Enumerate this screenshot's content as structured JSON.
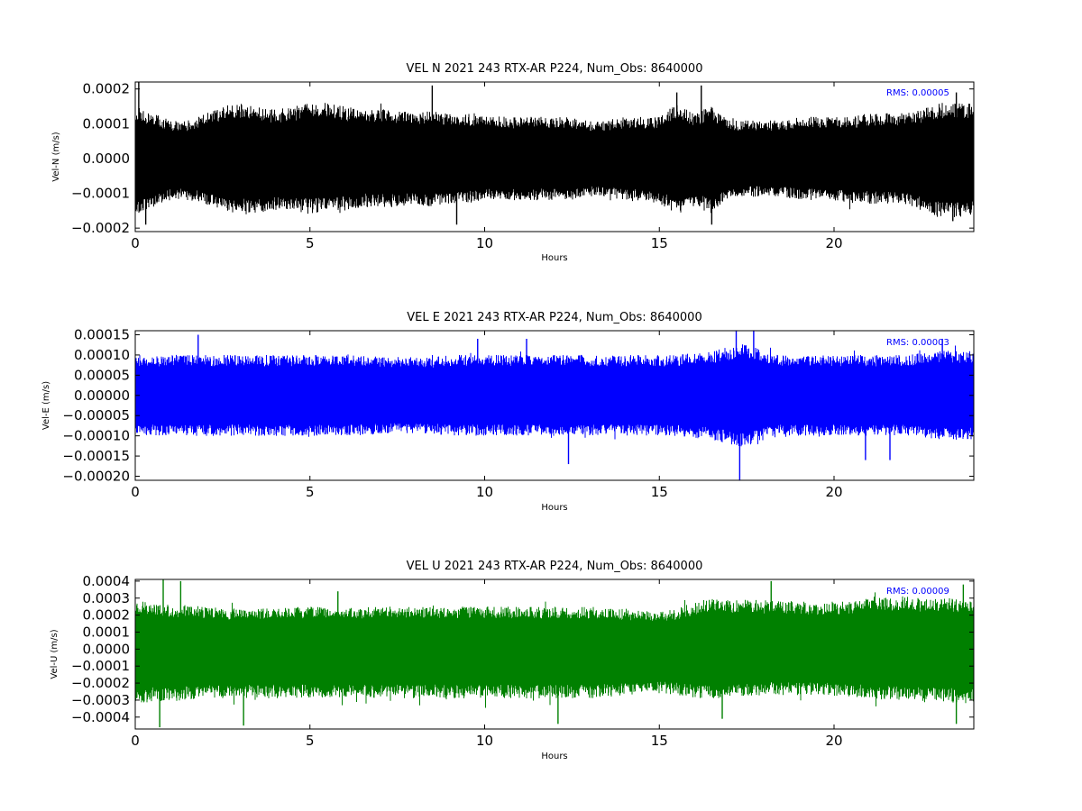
{
  "chart_data": [
    {
      "type": "line",
      "title": "VEL N 2021 243 RTX-AR  P224, Num_Obs: 8640000",
      "xlabel": "Hours",
      "ylabel": "Vel-N (m/s)",
      "xlim": [
        0,
        24
      ],
      "ylim": [
        -0.00021,
        0.00022
      ],
      "x_ticks": [
        0,
        5,
        10,
        15,
        20
      ],
      "x_tick_labels": [
        "0",
        "5",
        "10",
        "15",
        "20"
      ],
      "y_ticks": [
        -0.0002,
        -0.0001,
        0.0,
        0.0001,
        0.0002
      ],
      "y_tick_labels": [
        "−0.0002",
        "−0.0001",
        "0.0000",
        "0.0001",
        "0.0002"
      ],
      "color": "#000000",
      "annotation": {
        "text": "RMS:  0.00005",
        "color": "#0000ff",
        "position": "top-right"
      },
      "series": [
        {
          "x": [
            0,
            0.5,
            1,
            1.5,
            2,
            2.5,
            3,
            3.5,
            4,
            4.5,
            5,
            5.5,
            6,
            6.5,
            7,
            7.5,
            8,
            8.5,
            9,
            9.5,
            10,
            10.5,
            11,
            11.5,
            12,
            12.5,
            13,
            13.5,
            14,
            14.5,
            15,
            15.5,
            16,
            16.5,
            17,
            17.5,
            18,
            18.5,
            19,
            19.5,
            20,
            20.5,
            21,
            21.5,
            22,
            22.5,
            23,
            23.5,
            24
          ],
          "upper": [
            0.00015,
            0.00013,
            0.00011,
            0.00011,
            0.00013,
            0.00015,
            0.00016,
            0.00015,
            0.00014,
            0.00015,
            0.00016,
            0.00016,
            0.00015,
            0.00014,
            0.00014,
            0.00014,
            0.00013,
            0.00014,
            0.00013,
            0.00013,
            0.00013,
            0.00012,
            0.00012,
            0.00012,
            0.00012,
            0.00012,
            0.00011,
            0.00011,
            0.00012,
            0.00012,
            0.00012,
            0.00016,
            0.00013,
            0.00015,
            0.00011,
            0.00011,
            0.00011,
            0.00011,
            0.00012,
            0.00012,
            0.00012,
            0.00012,
            0.00013,
            0.00013,
            0.00013,
            0.00014,
            0.00016,
            0.00016,
            0.00016
          ],
          "lower": [
            -0.00016,
            -0.00014,
            -0.00012,
            -0.00012,
            -0.00013,
            -0.00015,
            -0.00016,
            -0.00016,
            -0.00015,
            -0.00015,
            -0.00016,
            -0.00015,
            -0.00015,
            -0.00014,
            -0.00014,
            -0.00014,
            -0.00013,
            -0.00014,
            -0.00013,
            -0.00013,
            -0.00012,
            -0.00012,
            -0.00012,
            -0.00012,
            -0.00012,
            -0.00012,
            -0.00011,
            -0.00011,
            -0.00012,
            -0.00012,
            -0.00013,
            -0.00016,
            -0.00014,
            -0.00016,
            -0.00011,
            -0.00011,
            -0.00011,
            -0.00011,
            -0.00012,
            -0.00012,
            -0.00012,
            -0.00013,
            -0.00013,
            -0.00013,
            -0.00013,
            -0.00015,
            -0.00017,
            -0.00017,
            -0.00016
          ],
          "peaks_max": [
            {
              "x": 0.1,
              "y": 0.00022
            },
            {
              "x": 8.5,
              "y": 0.00021
            },
            {
              "x": 15.5,
              "y": 0.00019
            },
            {
              "x": 16.2,
              "y": 0.00021
            },
            {
              "x": 23.5,
              "y": 0.00019
            }
          ],
          "peaks_min": [
            {
              "x": 0.3,
              "y": -0.00019
            },
            {
              "x": 9.2,
              "y": -0.00019
            },
            {
              "x": 16.5,
              "y": -0.00019
            },
            {
              "x": 23.4,
              "y": -0.00018
            }
          ]
        }
      ]
    },
    {
      "type": "line",
      "title": "VEL E 2021 243 RTX-AR  P224, Num_Obs: 8640000",
      "xlabel": "Hours",
      "ylabel": "Vel-E (m/s)",
      "xlim": [
        0,
        24
      ],
      "ylim": [
        -0.00021,
        0.00016
      ],
      "x_ticks": [
        0,
        5,
        10,
        15,
        20
      ],
      "x_tick_labels": [
        "0",
        "5",
        "10",
        "15",
        "20"
      ],
      "y_ticks": [
        -0.0002,
        -0.00015,
        -0.0001,
        -5e-05,
        0.0,
        5e-05,
        0.0001,
        0.00015
      ],
      "y_tick_labels": [
        "−0.00020",
        "−0.00015",
        "−0.00010",
        "−0.00005",
        "0.00000",
        "0.00005",
        "0.00010",
        "0.00015"
      ],
      "color": "#0000ff",
      "annotation": {
        "text": "RMS:  0.00003",
        "color": "#0000ff",
        "position": "top-right"
      },
      "series": [
        {
          "x": [
            0,
            0.5,
            1,
            1.5,
            2,
            2.5,
            3,
            3.5,
            4,
            4.5,
            5,
            5.5,
            6,
            6.5,
            7,
            7.5,
            8,
            8.5,
            9,
            9.5,
            10,
            10.5,
            11,
            11.5,
            12,
            12.5,
            13,
            13.5,
            14,
            14.5,
            15,
            15.5,
            16,
            16.5,
            17,
            17.5,
            18,
            18.5,
            19,
            19.5,
            20,
            20.5,
            21,
            21.5,
            22,
            22.5,
            23,
            23.5,
            24
          ],
          "upper": [
            0.0001,
            0.0001,
            0.0001,
            0.0001,
            0.0001,
            0.0001,
            0.0001,
            0.0001,
            0.0001,
            0.0001,
            0.0001,
            0.0001,
            0.0001,
            0.0001,
            9.5e-05,
            9.5e-05,
            9.5e-05,
            9.5e-05,
            0.0001,
            0.0001,
            0.0001,
            0.0001,
            0.0001,
            0.0001,
            0.0001,
            0.0001,
            0.0001,
            0.0001,
            0.0001,
            0.0001,
            0.0001,
            0.0001,
            0.000105,
            0.00011,
            0.00012,
            0.00013,
            0.00011,
            0.0001,
            0.0001,
            0.0001,
            0.0001,
            0.0001,
            0.0001,
            0.0001,
            0.0001,
            0.000105,
            0.00011,
            0.00011,
            0.00011
          ],
          "lower": [
            -0.0001,
            -0.0001,
            -0.0001,
            -0.0001,
            -0.0001,
            -0.0001,
            -0.0001,
            -0.0001,
            -0.0001,
            -0.0001,
            -0.0001,
            -0.0001,
            -0.0001,
            -0.0001,
            -9.5e-05,
            -9.5e-05,
            -9.5e-05,
            -9.5e-05,
            -0.0001,
            -0.0001,
            -0.0001,
            -0.0001,
            -0.0001,
            -0.0001,
            -0.0001,
            -0.0001,
            -0.0001,
            -0.0001,
            -0.0001,
            -0.0001,
            -0.0001,
            -0.0001,
            -0.000105,
            -0.00011,
            -0.00012,
            -0.00013,
            -0.00011,
            -0.0001,
            -0.0001,
            -0.0001,
            -0.0001,
            -0.0001,
            -0.0001,
            -0.0001,
            -0.0001,
            -0.000105,
            -0.00011,
            -0.00011,
            -0.00011
          ],
          "peaks_max": [
            {
              "x": 1.8,
              "y": 0.00015
            },
            {
              "x": 9.8,
              "y": 0.00014
            },
            {
              "x": 11.2,
              "y": 0.00014
            },
            {
              "x": 17.2,
              "y": 0.00016
            },
            {
              "x": 17.7,
              "y": 0.00016
            },
            {
              "x": 23.1,
              "y": 0.00014
            }
          ],
          "peaks_min": [
            {
              "x": 12.4,
              "y": -0.00017
            },
            {
              "x": 17.3,
              "y": -0.00021
            },
            {
              "x": 20.9,
              "y": -0.00016
            },
            {
              "x": 21.6,
              "y": -0.00016
            }
          ]
        }
      ]
    },
    {
      "type": "line",
      "title": "VEL U 2021 243 RTX-AR  P224, Num_Obs: 8640000",
      "xlabel": "Hours",
      "ylabel": "Vel-U (m/s)",
      "xlim": [
        0,
        24
      ],
      "ylim": [
        -0.00047,
        0.00041
      ],
      "x_ticks": [
        0,
        5,
        10,
        15,
        20
      ],
      "x_tick_labels": [
        "0",
        "5",
        "10",
        "15",
        "20"
      ],
      "y_ticks": [
        -0.0004,
        -0.0003,
        -0.0002,
        -0.0001,
        0.0,
        0.0001,
        0.0002,
        0.0003,
        0.0004
      ],
      "y_tick_labels": [
        "−0.0004",
        "−0.0003",
        "−0.0002",
        "−0.0001",
        "0.0000",
        "0.0001",
        "0.0002",
        "0.0003",
        "0.0004"
      ],
      "color": "#008000",
      "annotation": {
        "text": "RMS:  0.00009",
        "color": "#0000ff",
        "position": "top-right"
      },
      "series": [
        {
          "x": [
            0,
            0.5,
            1,
            1.5,
            2,
            2.5,
            3,
            3.5,
            4,
            4.5,
            5,
            5.5,
            6,
            6.5,
            7,
            7.5,
            8,
            8.5,
            9,
            9.5,
            10,
            10.5,
            11,
            11.5,
            12,
            12.5,
            13,
            13.5,
            14,
            14.5,
            15,
            15.5,
            16,
            16.5,
            17,
            17.5,
            18,
            18.5,
            19,
            19.5,
            20,
            20.5,
            21,
            21.5,
            22,
            22.5,
            23,
            23.5,
            24
          ],
          "upper": [
            0.00029,
            0.00027,
            0.00026,
            0.00026,
            0.00025,
            0.00024,
            0.00024,
            0.00024,
            0.00024,
            0.00025,
            0.00025,
            0.00025,
            0.00025,
            0.00025,
            0.00025,
            0.00025,
            0.00025,
            0.00025,
            0.00025,
            0.00025,
            0.00025,
            0.00025,
            0.00025,
            0.00025,
            0.00025,
            0.00025,
            0.00025,
            0.00024,
            0.00024,
            0.00023,
            0.00022,
            0.00024,
            0.00028,
            0.0003,
            0.00029,
            0.00029,
            0.00029,
            0.00029,
            0.00028,
            0.00028,
            0.00028,
            0.00028,
            0.0003,
            0.00031,
            0.00031,
            0.0003,
            0.0003,
            0.0003,
            0.0003
          ],
          "lower": [
            -0.00032,
            -0.00031,
            -0.00031,
            -0.0003,
            -0.00029,
            -0.00029,
            -0.00029,
            -0.00029,
            -0.00029,
            -0.00029,
            -0.00029,
            -0.00029,
            -0.00029,
            -0.00029,
            -0.00029,
            -0.00029,
            -0.00029,
            -0.00029,
            -0.00029,
            -0.00029,
            -0.00029,
            -0.00029,
            -0.00029,
            -0.00029,
            -0.00029,
            -0.00029,
            -0.00029,
            -0.00028,
            -0.00028,
            -0.00027,
            -0.00026,
            -0.00027,
            -0.00029,
            -0.0003,
            -0.00029,
            -0.00028,
            -0.00027,
            -0.00027,
            -0.00027,
            -0.00027,
            -0.00028,
            -0.00028,
            -0.00029,
            -0.0003,
            -0.0003,
            -0.00031,
            -0.00031,
            -0.00032,
            -0.00032
          ],
          "peaks_max": [
            {
              "x": 0.8,
              "y": 0.00041
            },
            {
              "x": 1.3,
              "y": 0.0004
            },
            {
              "x": 5.8,
              "y": 0.00034
            },
            {
              "x": 18.2,
              "y": 0.0004
            },
            {
              "x": 23.7,
              "y": 0.00038
            }
          ],
          "peaks_min": [
            {
              "x": 0.7,
              "y": -0.00046
            },
            {
              "x": 3.1,
              "y": -0.00045
            },
            {
              "x": 12.1,
              "y": -0.00044
            },
            {
              "x": 16.8,
              "y": -0.00041
            },
            {
              "x": 23.5,
              "y": -0.00044
            }
          ]
        }
      ]
    }
  ]
}
